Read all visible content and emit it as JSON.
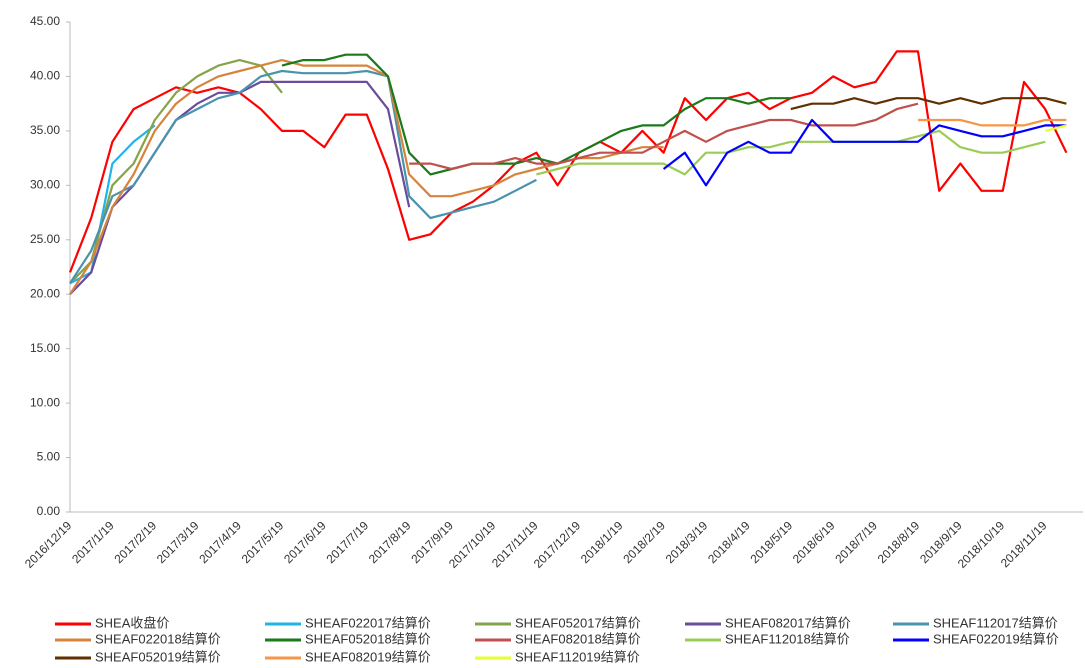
{
  "chart_data": {
    "type": "line",
    "categories": [
      "2016/12/19",
      null,
      "2017/1/19",
      null,
      "2017/2/19",
      null,
      "2017/3/19",
      null,
      "2017/4/19",
      null,
      "2017/5/19",
      null,
      "2017/6/19",
      null,
      "2017/7/19",
      null,
      "2017/8/19",
      null,
      "2017/9/19",
      null,
      "2017/10/19",
      null,
      "2017/11/19",
      null,
      "2017/12/19",
      null,
      "2018/1/19",
      null,
      "2018/2/19",
      null,
      "2018/3/19",
      null,
      "2018/4/19",
      null,
      "2018/5/19",
      null,
      "2018/6/19",
      null,
      "2018/7/19",
      null,
      "2018/8/19",
      null,
      "2018/9/19",
      null,
      "2018/10/19",
      null,
      "2018/11/19",
      null
    ],
    "ylim": [
      0,
      45
    ],
    "yticks": [
      {
        "value": 0,
        "label": "0.00"
      },
      {
        "value": 5,
        "label": "5.00"
      },
      {
        "value": 10,
        "label": "10.00"
      },
      {
        "value": 15,
        "label": "15.00"
      },
      {
        "value": 20,
        "label": "20.00"
      },
      {
        "value": 25,
        "label": "25.00"
      },
      {
        "value": 30,
        "label": "30.00"
      },
      {
        "value": 35,
        "label": "35.00"
      },
      {
        "value": 40,
        "label": "40.00"
      },
      {
        "value": 45,
        "label": "45.00"
      }
    ],
    "grid": false,
    "series": [
      {
        "name": "SHEA收盘价",
        "color": "#ff0000",
        "values": [
          22,
          27,
          34,
          37,
          38,
          39,
          38.5,
          39,
          38.5,
          37,
          35,
          35,
          33.5,
          36.5,
          36.5,
          31.5,
          25,
          25.5,
          27.5,
          28.5,
          30,
          32,
          33,
          30,
          33,
          34,
          33,
          35,
          33,
          38,
          36,
          38,
          38.5,
          37,
          38,
          38.5,
          40,
          39,
          39.5,
          42.3,
          42.3,
          29.5,
          32,
          29.5,
          29.5,
          39.5,
          37,
          33
        ]
      },
      {
        "name": "SHEAF022017结算价",
        "color": "#1fb5ea",
        "values": [
          21,
          22,
          32,
          34,
          35.5,
          null,
          null,
          null,
          null,
          null,
          null,
          null,
          null,
          null,
          null,
          null,
          null,
          null,
          null,
          null,
          null,
          null,
          null,
          null,
          null,
          null,
          null,
          null,
          null,
          null,
          null,
          null,
          null,
          null,
          null,
          null,
          null,
          null,
          null,
          null,
          null,
          null,
          null,
          null,
          null,
          null,
          null,
          null
        ]
      },
      {
        "name": "SHEAF052017结算价",
        "color": "#86a34a",
        "values": [
          21,
          23,
          30,
          32,
          36,
          38.5,
          40,
          41,
          41.5,
          41,
          38.5,
          null,
          null,
          null,
          null,
          null,
          null,
          null,
          null,
          null,
          null,
          null,
          null,
          null,
          null,
          null,
          null,
          null,
          null,
          null,
          null,
          null,
          null,
          null,
          null,
          null,
          null,
          null,
          null,
          null,
          null,
          null,
          null,
          null,
          null,
          null,
          null,
          null
        ]
      },
      {
        "name": "SHEAF082017结算价",
        "color": "#6a4c9c",
        "values": [
          20,
          22,
          28,
          30,
          33,
          36,
          37.5,
          38.5,
          38.5,
          39.5,
          39.5,
          39.5,
          39.5,
          39.5,
          39.5,
          37,
          28,
          null,
          null,
          null,
          null,
          null,
          null,
          null,
          null,
          null,
          null,
          null,
          null,
          null,
          null,
          null,
          null,
          null,
          null,
          null,
          null,
          null,
          null,
          null,
          null,
          null,
          null,
          null,
          null,
          null,
          null,
          null
        ]
      },
      {
        "name": "SHEAF112017结算价",
        "color": "#4a93ac",
        "values": [
          21,
          24,
          29,
          30,
          33,
          36,
          37,
          38,
          38.5,
          40,
          40.5,
          40.3,
          40.3,
          40.3,
          40.5,
          40,
          29,
          27,
          27.5,
          28,
          28.5,
          29.5,
          30.5,
          null,
          null,
          null,
          null,
          null,
          null,
          null,
          null,
          null,
          null,
          null,
          null,
          null,
          null,
          null,
          null,
          null,
          null,
          null,
          null,
          null,
          null,
          null,
          null,
          null
        ]
      },
      {
        "name": "SHEAF022018结算价",
        "color": "#d6843d",
        "values": [
          20,
          23,
          28,
          31,
          35,
          37.5,
          39,
          40,
          40.5,
          41,
          41.5,
          41,
          41,
          41,
          41,
          40,
          31,
          29,
          29,
          29.5,
          30,
          31,
          31.5,
          32,
          32.5,
          32.5,
          33,
          33.5,
          33.5,
          null,
          null,
          null,
          null,
          null,
          null,
          null,
          null,
          null,
          null,
          null,
          null,
          null,
          null,
          null,
          null,
          null,
          null,
          null
        ]
      },
      {
        "name": "SHEAF052018结算价",
        "color": "#1a7a1a",
        "values": [
          null,
          null,
          null,
          null,
          null,
          null,
          null,
          null,
          null,
          null,
          41,
          41.5,
          41.5,
          42,
          42,
          40,
          33,
          31,
          31.5,
          32,
          32,
          32,
          32.5,
          32,
          33,
          34,
          35,
          35.5,
          35.5,
          37,
          38,
          38,
          37.5,
          38,
          38,
          null,
          null,
          null,
          null,
          null,
          null,
          null,
          null,
          null,
          null,
          null,
          null,
          null
        ]
      },
      {
        "name": "SHEAF082018结算价",
        "color": "#c0504d",
        "values": [
          null,
          null,
          null,
          null,
          null,
          null,
          null,
          null,
          null,
          null,
          null,
          null,
          null,
          null,
          null,
          null,
          32,
          32,
          31.5,
          32,
          32,
          32.5,
          32,
          32,
          32.5,
          33,
          33,
          33,
          34,
          35,
          34,
          35,
          35.5,
          36,
          36,
          35.5,
          35.5,
          35.5,
          36,
          37,
          37.5,
          null,
          null,
          null,
          null,
          null,
          null,
          null
        ]
      },
      {
        "name": "SHEAF112018结算价",
        "color": "#9bcc55",
        "values": [
          null,
          null,
          null,
          null,
          null,
          null,
          null,
          null,
          null,
          null,
          null,
          null,
          null,
          null,
          null,
          null,
          null,
          null,
          null,
          null,
          null,
          null,
          31,
          31.5,
          32,
          32,
          32,
          32,
          32,
          31,
          33,
          33,
          33.5,
          33.5,
          34,
          34,
          34,
          34,
          34,
          34,
          34.5,
          35,
          33.5,
          33,
          33,
          33.5,
          34,
          null
        ]
      },
      {
        "name": "SHEAF022019结算价",
        "color": "#0000ff",
        "values": [
          null,
          null,
          null,
          null,
          null,
          null,
          null,
          null,
          null,
          null,
          null,
          null,
          null,
          null,
          null,
          null,
          null,
          null,
          null,
          null,
          null,
          null,
          null,
          null,
          null,
          null,
          null,
          null,
          31.5,
          33,
          30,
          33,
          34,
          33,
          33,
          36,
          34,
          34,
          34,
          34,
          34,
          35.5,
          35,
          34.5,
          34.5,
          35,
          35.5,
          35.5
        ]
      },
      {
        "name": "SHEAF052019结算价",
        "color": "#603000",
        "values": [
          null,
          null,
          null,
          null,
          null,
          null,
          null,
          null,
          null,
          null,
          null,
          null,
          null,
          null,
          null,
          null,
          null,
          null,
          null,
          null,
          null,
          null,
          null,
          null,
          null,
          null,
          null,
          null,
          null,
          null,
          null,
          null,
          null,
          null,
          37,
          37.5,
          37.5,
          38,
          37.5,
          38,
          38,
          37.5,
          38,
          37.5,
          38,
          38,
          38,
          37.5
        ]
      },
      {
        "name": "SHEAF082019结算价",
        "color": "#f79646",
        "values": [
          null,
          null,
          null,
          null,
          null,
          null,
          null,
          null,
          null,
          null,
          null,
          null,
          null,
          null,
          null,
          null,
          null,
          null,
          null,
          null,
          null,
          null,
          null,
          null,
          null,
          null,
          null,
          null,
          null,
          null,
          null,
          null,
          null,
          null,
          null,
          null,
          null,
          null,
          null,
          null,
          36,
          36,
          36,
          35.5,
          35.5,
          35.5,
          36,
          36
        ]
      },
      {
        "name": "SHEAF112019结算价",
        "color": "#e6ff33",
        "values": [
          null,
          null,
          null,
          null,
          null,
          null,
          null,
          null,
          null,
          null,
          null,
          null,
          null,
          null,
          null,
          null,
          null,
          null,
          null,
          null,
          null,
          null,
          null,
          null,
          null,
          null,
          null,
          null,
          null,
          null,
          null,
          null,
          null,
          null,
          null,
          null,
          null,
          null,
          null,
          null,
          null,
          null,
          null,
          null,
          null,
          null,
          35,
          35.5
        ]
      }
    ]
  }
}
